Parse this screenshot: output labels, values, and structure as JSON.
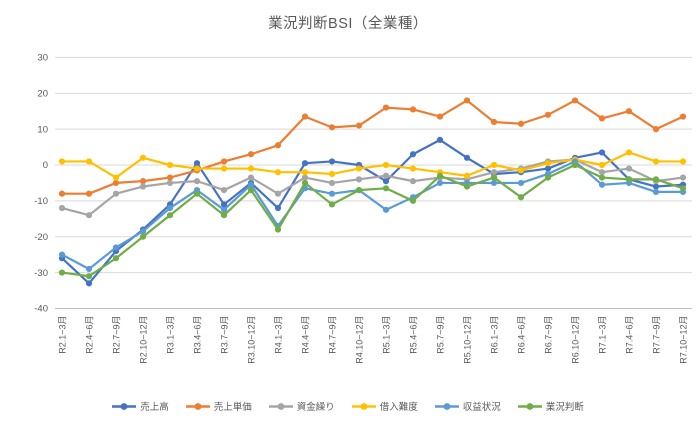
{
  "title": "業況判断BSI（全業種）",
  "colors": {
    "background": "#FFFFFF",
    "grid": "#D9D9D9",
    "axis_line": "#BFBFBF",
    "axis_text": "#595959",
    "title_text": "#595959"
  },
  "chart_data": {
    "type": "line",
    "title": "業況判断BSI（全業種）",
    "xlabel": "",
    "ylabel": "",
    "grid": true,
    "legend_position": "bottom",
    "y_axis": {
      "min": -40,
      "max": 30,
      "step": 10,
      "ticks": [
        30,
        20,
        10,
        0,
        -10,
        -20,
        -30,
        -40
      ]
    },
    "categories": [
      "R2.1~3月",
      "R2.4~6月",
      "R2.7~9月",
      "R2.10~12月",
      "R3.1~3月",
      "R3.4~6月",
      "R3.7~9月",
      "R3.10~12月",
      "R4.1~3月",
      "R4.4~6月",
      "R4.7~9月",
      "R4.10~12月",
      "R5.1~3月",
      "R5.4~6月",
      "R5.7~9月",
      "R5.10~12月",
      "R6.1~3月",
      "R6.4~6月",
      "R6.7~9月",
      "R6.10~12月",
      "R7.1~3月",
      "R7.4~6月",
      "R7.7~9月",
      "R7.10~12月"
    ],
    "series": [
      {
        "name": "売上高",
        "color": "#4472C4",
        "values": [
          -26,
          -33,
          -24,
          -18,
          -11,
          0.5,
          -11,
          -5,
          -12,
          0.5,
          1,
          0,
          -4.5,
          3,
          7,
          2,
          -2.5,
          -2,
          -1,
          2,
          3.5,
          -4,
          -6,
          -5.5
        ]
      },
      {
        "name": "売上単価",
        "color": "#ED7D31",
        "values": [
          -8,
          -8,
          -5,
          -4.5,
          -3.5,
          -1.5,
          1,
          3,
          5.5,
          13.5,
          10.5,
          11,
          16,
          15.5,
          13.5,
          18,
          12,
          11.5,
          14,
          18,
          13,
          15,
          10,
          13.5
        ]
      },
      {
        "name": "資金繰り",
        "color": "#A5A5A5",
        "values": [
          -12,
          -14,
          -8,
          -6,
          -5,
          -4.5,
          -7,
          -3.5,
          -8,
          -3.5,
          -5,
          -4,
          -3,
          -4.5,
          -3.5,
          -4,
          -2,
          -1,
          1,
          1.5,
          -2,
          -1,
          -4.5,
          -3.5
        ]
      },
      {
        "name": "借入難度",
        "color": "#FFC000",
        "values": [
          1,
          1,
          -3.5,
          2,
          0,
          -1,
          -1,
          -1,
          -2,
          -2,
          -2.5,
          -1,
          0,
          -1,
          -2,
          -3,
          0,
          -1.5,
          0.5,
          1.5,
          0,
          3.5,
          1,
          1
        ]
      },
      {
        "name": "収益状況",
        "color": "#5B9BD5",
        "values": [
          -25,
          -29,
          -23,
          -18.5,
          -12,
          -7,
          -12.5,
          -5.5,
          -17,
          -6.5,
          -8,
          -7,
          -12.5,
          -9,
          -5,
          -5,
          -5,
          -5,
          -2.5,
          1,
          -5.5,
          -5,
          -7.5,
          -7.5
        ]
      },
      {
        "name": "業況判断",
        "color": "#70AD47",
        "values": [
          -30,
          -31,
          -26,
          -20,
          -14,
          -8,
          -14,
          -7,
          -18,
          -5,
          -11,
          -7,
          -6.5,
          -10,
          -3,
          -6,
          -3.5,
          -9,
          -3.5,
          0,
          -3.5,
          -4,
          -4,
          -6.5
        ]
      }
    ]
  }
}
